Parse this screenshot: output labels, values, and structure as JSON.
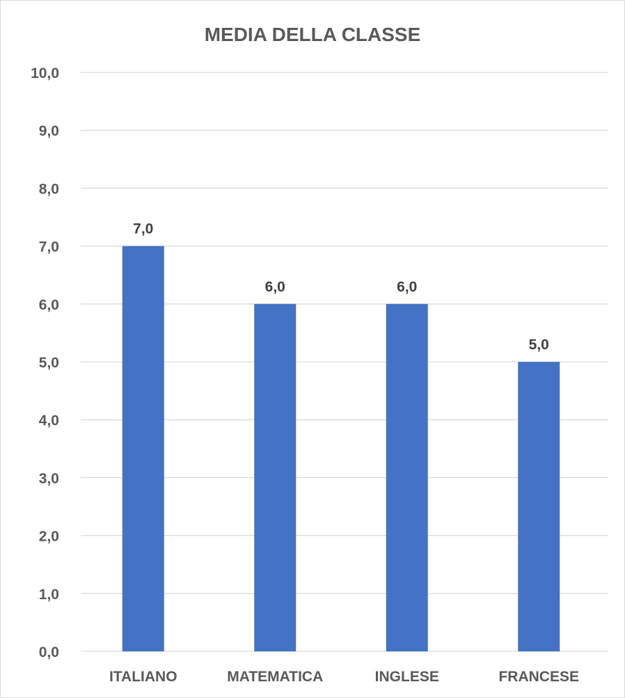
{
  "chart_data": {
    "type": "bar",
    "title": "MEDIA DELLA CLASSE",
    "categories": [
      "ITALIANO",
      "MATEMATICA",
      "INGLESE",
      "FRANCESE"
    ],
    "values": [
      7.0,
      6.0,
      6.0,
      5.0
    ],
    "data_labels": [
      "7,0",
      "6,0",
      "6,0",
      "5,0"
    ],
    "ylim": [
      0,
      10
    ],
    "yticks": [
      "0,0",
      "1,0",
      "2,0",
      "3,0",
      "4,0",
      "5,0",
      "6,0",
      "7,0",
      "8,0",
      "9,0",
      "10,0"
    ],
    "grid": true,
    "legend": "none",
    "bar_color": "#4472C4",
    "xlabel": "",
    "ylabel": ""
  }
}
